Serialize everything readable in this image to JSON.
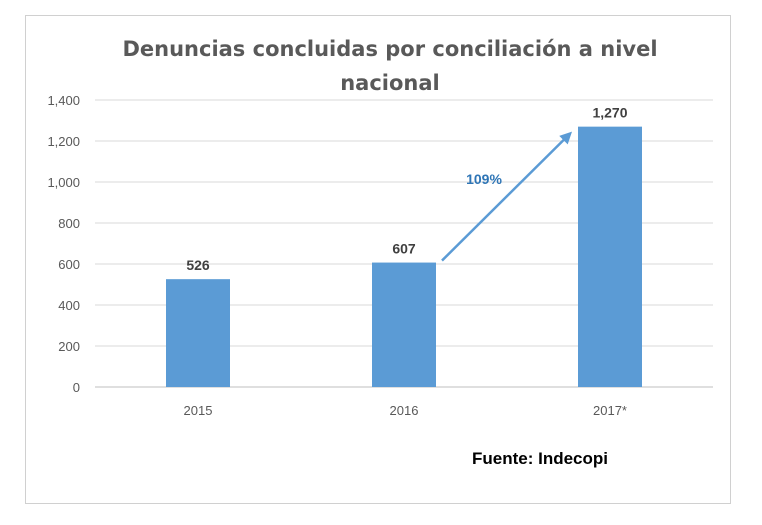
{
  "chart_data": {
    "type": "bar",
    "title": "Denuncias concluidas por conciliación a nivel nacional",
    "title_lines": [
      "Denuncias concluidas por conciliación a nivel",
      "nacional"
    ],
    "categories": [
      "2015",
      "2016",
      "2017*"
    ],
    "values": [
      526,
      607,
      1270
    ],
    "data_labels": [
      "526",
      "607",
      "1,270"
    ],
    "ylim": [
      0,
      1400
    ],
    "yticks": [
      0,
      200,
      400,
      600,
      800,
      1000,
      1200,
      1400
    ],
    "ytick_labels": [
      "0",
      "200",
      "400",
      "600",
      "800",
      "1,000",
      "1,200",
      "1,400"
    ],
    "grid": true,
    "bar_color": "#5b9bd5",
    "annotation": {
      "text": "109%",
      "from": "2016",
      "to": "2017*",
      "color": "#2e75b6"
    },
    "source": "Fuente: Indecopi"
  }
}
